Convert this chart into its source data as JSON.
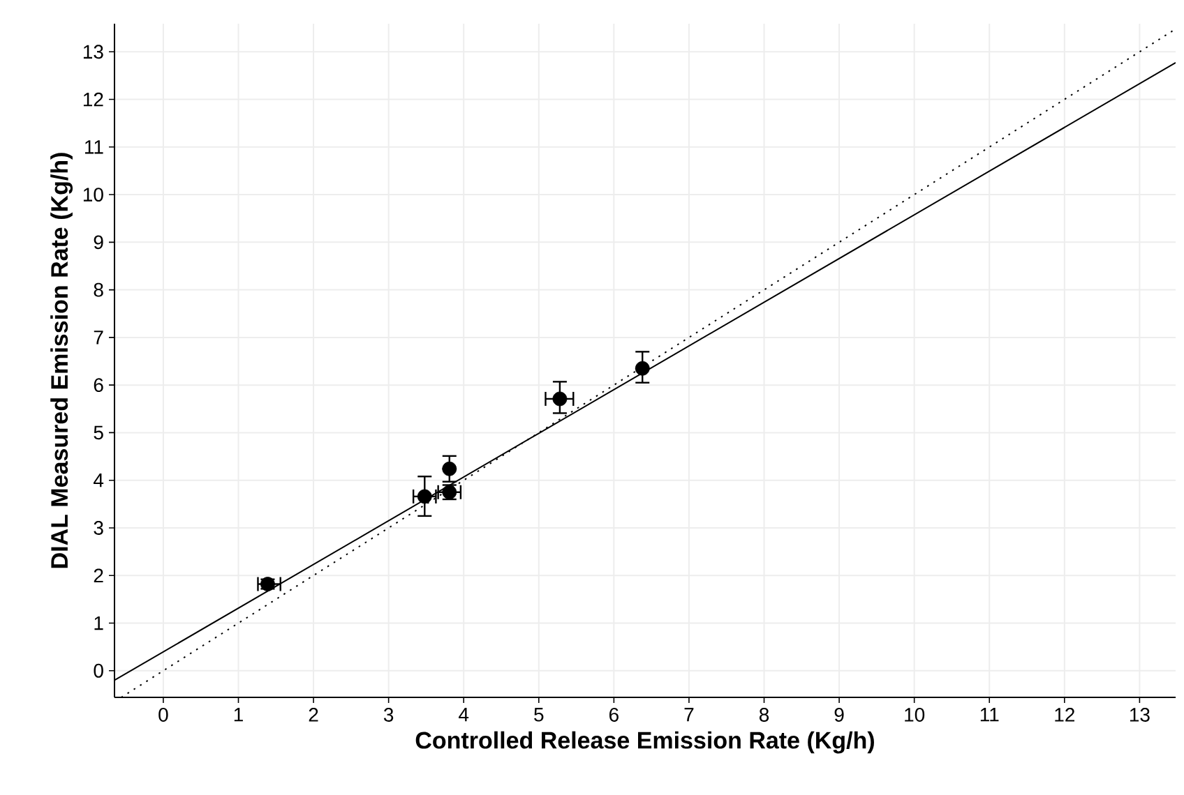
{
  "chart_data": {
    "type": "scatter",
    "xlabel": "Controlled Release Emission Rate (Kg/h)",
    "ylabel": "DIAL Measured Emission Rate (Kg/h)",
    "xlim": [
      -0.65,
      13.48
    ],
    "ylim": [
      -0.56,
      13.59
    ],
    "xticks": [
      0,
      1,
      2,
      3,
      4,
      5,
      6,
      7,
      8,
      9,
      10,
      11,
      12,
      13
    ],
    "yticks": [
      0,
      1,
      2,
      3,
      4,
      5,
      6,
      7,
      8,
      9,
      10,
      11,
      12,
      13
    ],
    "grid": true,
    "series": [
      {
        "color": "#000000",
        "marker": "circle",
        "x": [
          1.39,
          3.48,
          3.81,
          3.81,
          5.28,
          6.38
        ],
        "values": [
          1.82,
          3.66,
          3.75,
          4.24,
          5.71,
          6.35
        ],
        "errors": [
          [
            1.72,
            1.92
          ],
          [
            3.25,
            4.08
          ],
          [
            3.6,
            3.9
          ],
          [
            3.97,
            4.51
          ],
          [
            5.41,
            6.07
          ],
          [
            6.05,
            6.7
          ]
        ],
        "xerrors": [
          [
            1.26,
            1.56
          ],
          [
            3.33,
            3.63
          ],
          [
            3.66,
            3.96
          ],
          null,
          [
            5.09,
            5.46
          ],
          null
        ]
      },
      {
        "type": "line",
        "color": "#000000",
        "marker": "none",
        "line_style": "solid",
        "x": [
          -0.65,
          13.48
        ],
        "values": [
          -0.2,
          12.77
        ]
      },
      {
        "type": "line",
        "color": "#000000",
        "marker": "none",
        "line_style": "dotted",
        "x": [
          -0.56,
          13.48
        ],
        "values": [
          -0.56,
          13.48
        ]
      }
    ]
  }
}
